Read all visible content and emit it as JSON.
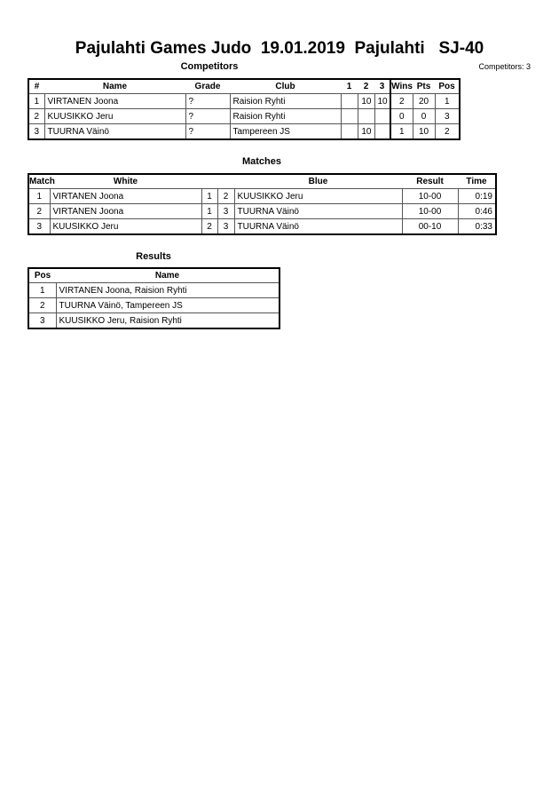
{
  "title": "Pajulahti Games Judo  19.01.2019  Pajulahti   SJ-40",
  "competitors": {
    "heading": "Competitors",
    "count_label": "Competitors: 3",
    "columns": [
      "#",
      "Name",
      "Grade",
      "Club",
      "1",
      "2",
      "3",
      "Wins",
      "Pts",
      "Pos"
    ],
    "rows": [
      {
        "num": "1",
        "name": "VIRTANEN Joona",
        "grade": "?",
        "club": "Raision Ryhti",
        "s1": "",
        "s2": "10",
        "s3": "10",
        "wins": "2",
        "pts": "20",
        "pos": "1"
      },
      {
        "num": "2",
        "name": "KUUSIKKO Jeru",
        "grade": "?",
        "club": "Raision Ryhti",
        "s1": "",
        "s2": "",
        "s3": "",
        "wins": "0",
        "pts": "0",
        "pos": "3"
      },
      {
        "num": "3",
        "name": "TUURNA Väinö",
        "grade": "?",
        "club": "Tampereen JS",
        "s1": "",
        "s2": "10",
        "s3": "",
        "wins": "1",
        "pts": "10",
        "pos": "2"
      }
    ]
  },
  "matches": {
    "heading": "Matches",
    "columns": [
      "Match",
      "White",
      "Blue",
      "Result",
      "Time"
    ],
    "rows": [
      {
        "match": "1",
        "white": "VIRTANEN Joona",
        "wn": "1",
        "bn": "2",
        "blue": "KUUSIKKO Jeru",
        "result": "10-00",
        "time": "0:19"
      },
      {
        "match": "2",
        "white": "VIRTANEN Joona",
        "wn": "1",
        "bn": "3",
        "blue": "TUURNA Väinö",
        "result": "10-00",
        "time": "0:46"
      },
      {
        "match": "3",
        "white": "KUUSIKKO Jeru",
        "wn": "2",
        "bn": "3",
        "blue": "TUURNA Väinö",
        "result": "00-10",
        "time": "0:33"
      }
    ]
  },
  "results": {
    "heading": "Results",
    "columns": [
      "Pos",
      "Name"
    ],
    "rows": [
      {
        "pos": "1",
        "name": "VIRTANEN Joona, Raision Ryhti"
      },
      {
        "pos": "2",
        "name": "TUURNA Väinö, Tampereen JS"
      },
      {
        "pos": "3",
        "name": "KUUSIKKO Jeru, Raision Ryhti"
      }
    ]
  }
}
